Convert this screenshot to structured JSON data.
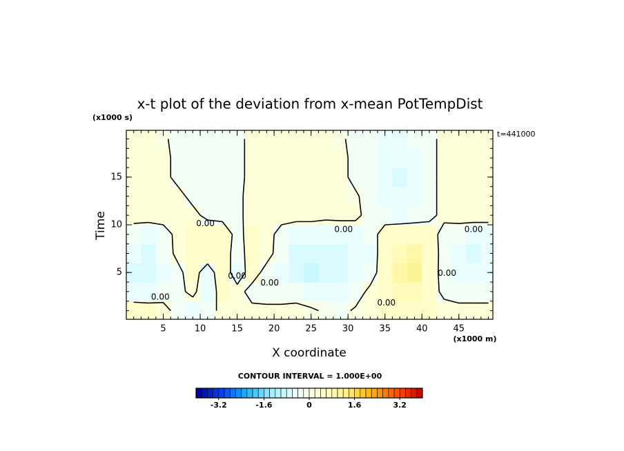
{
  "chart_data": {
    "type": "contour",
    "title": "x-t plot of the deviation from x-mean PotTempDist",
    "y_unit": "(x1000 s)",
    "x_unit": "(x1000 m)",
    "time_label": "t=441000",
    "ylabel": "Time",
    "xlabel": "X coordinate",
    "contour_interval_label": "CONTOUR INTERVAL = 1.000E+00",
    "xlim": [
      0,
      49.6
    ],
    "ylim": [
      0.1,
      19.9
    ],
    "xticks": [
      5,
      10,
      15,
      20,
      25,
      30,
      35,
      40,
      45
    ],
    "yticks": [
      5,
      10,
      15
    ],
    "minor_tick_interval": 1,
    "x": [
      1,
      3,
      5,
      7,
      9,
      11,
      13,
      15,
      17,
      19,
      21,
      23,
      25,
      27,
      29,
      31,
      33,
      35,
      37,
      39,
      41,
      43,
      45,
      47,
      49
    ],
    "y": [
      1,
      3,
      5,
      7,
      9,
      11,
      13,
      15,
      17,
      19
    ],
    "z": [
      [
        0.4,
        0.4,
        0.3,
        -0.3,
        -0.5,
        -0.3,
        0.2,
        0.3,
        0.2,
        0.2,
        0.2,
        0.2,
        0.1,
        -0.1,
        -0.2,
        0.1,
        0.3,
        0.5,
        0.6,
        0.6,
        0.5,
        0.3,
        0.2,
        0.2,
        0.2
      ],
      [
        -0.5,
        -0.6,
        -0.4,
        -0.2,
        0.2,
        -0.6,
        0.4,
        0.3,
        -0.3,
        -0.4,
        -0.4,
        -0.3,
        -0.5,
        -0.6,
        -0.5,
        -0.4,
        0.2,
        0.6,
        0.8,
        0.8,
        0.4,
        -0.2,
        -0.3,
        -0.3,
        -0.3
      ],
      [
        -0.7,
        -0.8,
        -0.6,
        -0.2,
        0.4,
        -0.5,
        0.6,
        -0.5,
        0.4,
        -0.3,
        -0.6,
        -0.8,
        -0.9,
        -0.8,
        -0.8,
        -0.6,
        -0.4,
        0.5,
        0.9,
        1.0,
        0.6,
        -0.4,
        -0.6,
        -0.6,
        -0.6
      ],
      [
        -0.6,
        -0.7,
        -0.4,
        0.2,
        0.5,
        0.6,
        0.5,
        -0.4,
        0.4,
        0.3,
        -0.4,
        -0.7,
        -0.8,
        -0.8,
        -0.7,
        -0.6,
        -0.5,
        0.5,
        0.8,
        0.9,
        0.5,
        -0.3,
        -0.6,
        -0.7,
        -0.6
      ],
      [
        -0.4,
        -0.5,
        -0.3,
        0.2,
        0.5,
        0.6,
        0.6,
        -0.3,
        0.4,
        0.3,
        -0.3,
        -0.6,
        -0.6,
        -0.6,
        -0.5,
        -0.5,
        -0.4,
        0.4,
        0.6,
        0.6,
        0.4,
        -0.3,
        -0.4,
        -0.5,
        -0.5
      ],
      [
        0.3,
        0.3,
        0.3,
        0.2,
        0.2,
        -0.2,
        -0.3,
        -0.2,
        0.3,
        0.3,
        0.3,
        0.3,
        0.3,
        0.2,
        0.2,
        0.2,
        -0.3,
        -0.4,
        -0.5,
        -0.4,
        -0.2,
        0.2,
        0.3,
        0.3,
        0.3
      ],
      [
        0.3,
        0.3,
        0.3,
        0.2,
        -0.2,
        -0.3,
        -0.3,
        -0.2,
        0.3,
        0.3,
        0.2,
        0.2,
        0.2,
        0.2,
        0.2,
        0.1,
        -0.3,
        -0.5,
        -0.6,
        -0.5,
        -0.2,
        0.2,
        0.3,
        0.3,
        0.3
      ],
      [
        0.2,
        0.2,
        0.2,
        -0.2,
        -0.3,
        -0.3,
        -0.3,
        -0.2,
        0.2,
        0.2,
        0.2,
        0.2,
        0.2,
        0.2,
        0.2,
        -0.2,
        -0.4,
        -0.6,
        -0.7,
        -0.5,
        -0.2,
        0.2,
        0.2,
        0.2,
        0.2
      ],
      [
        0.2,
        0.2,
        0.2,
        -0.2,
        -0.3,
        -0.3,
        -0.3,
        -0.2,
        0.2,
        0.2,
        0.2,
        0.2,
        0.2,
        0.2,
        0.2,
        -0.2,
        -0.4,
        -0.6,
        -0.6,
        -0.5,
        -0.2,
        0.2,
        0.2,
        0.2,
        0.2
      ],
      [
        0.2,
        0.2,
        0.1,
        -0.2,
        -0.3,
        -0.3,
        -0.3,
        -0.2,
        0.2,
        0.2,
        0.2,
        0.2,
        0.2,
        0.2,
        0.1,
        -0.2,
        -0.4,
        -0.5,
        -0.5,
        -0.4,
        -0.2,
        0.2,
        0.2,
        0.2,
        0.2
      ]
    ],
    "contour_levels": [
      0
    ],
    "contour_labels": [
      {
        "text": "0.00",
        "x": 10.7,
        "y": 10.1
      },
      {
        "text": "0.00",
        "x": 29.4,
        "y": 9.5
      },
      {
        "text": "0.00",
        "x": 47,
        "y": 9.5
      },
      {
        "text": "0.00",
        "x": 19.4,
        "y": 3.9
      },
      {
        "text": "0.00",
        "x": 4.6,
        "y": 2.4
      },
      {
        "text": "0.00",
        "x": 15,
        "y": 4.6
      },
      {
        "text": "0.00",
        "x": 35.2,
        "y": 1.8
      },
      {
        "text": "0.00",
        "x": 43.4,
        "y": 4.9
      }
    ],
    "colorbar": {
      "lim": [
        -4,
        4
      ],
      "step": 0.2,
      "ticks": [
        -3.2,
        -1.6,
        0,
        1.6,
        3.2
      ],
      "colors": [
        "#00008b",
        "#0040ff",
        "#20b0f0",
        "#a0f0ff",
        "#f0ffff",
        "#ffffd0",
        "#fff080",
        "#ffb000",
        "#ff5000",
        "#c00000"
      ]
    }
  }
}
